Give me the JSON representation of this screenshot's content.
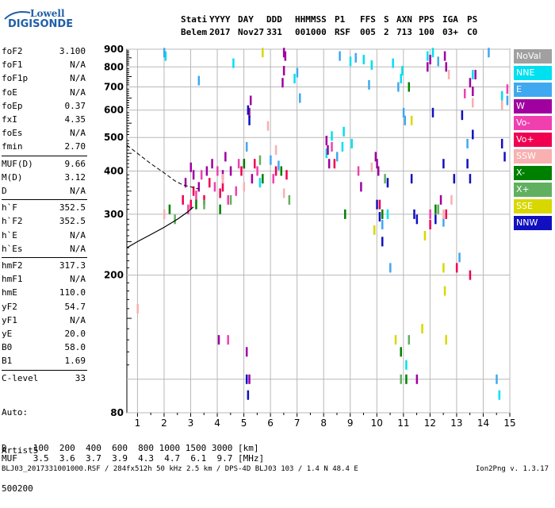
{
  "logo": {
    "line1": "Lowell",
    "line2": "DIGISONDE"
  },
  "header": {
    "row1": [
      "Stati",
      "YYYY",
      "DAY",
      "DDD",
      "HHMMSS",
      "P1",
      "FFS",
      "S",
      "AXN",
      "PPS",
      "IGA",
      "PS"
    ],
    "row2": [
      "Belem",
      "2017",
      "Nov27",
      "331",
      "001000",
      "RSF",
      "005",
      "2",
      "713",
      "100",
      "03+",
      "C0"
    ]
  },
  "params_group1": [
    {
      "k": "foF2",
      "v": "3.100"
    },
    {
      "k": "foF1",
      "v": "N/A"
    },
    {
      "k": "foF1p",
      "v": "N/A"
    },
    {
      "k": "foE",
      "v": "N/A"
    },
    {
      "k": "foEp",
      "v": "0.37"
    },
    {
      "k": "fxI",
      "v": "4.35"
    },
    {
      "k": "foEs",
      "v": "N/A"
    },
    {
      "k": "fmin",
      "v": "2.70"
    }
  ],
  "params_group2": [
    {
      "k": "MUF(D)",
      "v": "9.66"
    },
    {
      "k": "M(D)",
      "v": "3.12"
    },
    {
      "k": "D",
      "v": "N/A"
    }
  ],
  "params_group3": [
    {
      "k": "h`F",
      "v": "352.5"
    },
    {
      "k": "h`F2",
      "v": "352.5"
    },
    {
      "k": "h`E",
      "v": "N/A"
    },
    {
      "k": "h`Es",
      "v": "N/A"
    }
  ],
  "params_group4": [
    {
      "k": "hmF2",
      "v": "317.3"
    },
    {
      "k": "hmF1",
      "v": "N/A"
    },
    {
      "k": "hmE",
      "v": "110.0"
    },
    {
      "k": "yF2",
      "v": "54.7"
    },
    {
      "k": "yF1",
      "v": "N/A"
    },
    {
      "k": "yE",
      "v": "20.0"
    },
    {
      "k": "B0",
      "v": "58.0"
    },
    {
      "k": "B1",
      "v": "1.69"
    }
  ],
  "params_group5": [
    {
      "k": "C-level",
      "v": "33"
    }
  ],
  "auto": {
    "line1": "Auto:",
    "line2": "Artist5",
    "line3": "500200"
  },
  "legend": [
    {
      "label": "NoVal",
      "color": "#a0a0a0"
    },
    {
      "label": "NNE",
      "color": "#00e0f0"
    },
    {
      "label": "E",
      "color": "#40a8f0"
    },
    {
      "label": "W",
      "color": "#a000a0"
    },
    {
      "label": "Vo-",
      "color": "#f040b0"
    },
    {
      "label": "Vo+",
      "color": "#f00050"
    },
    {
      "label": "SSW",
      "color": "#f8b0b0"
    },
    {
      "label": "X-",
      "color": "#008000"
    },
    {
      "label": "X+",
      "color": "#60b060"
    },
    {
      "label": "SSE",
      "color": "#d8d800"
    },
    {
      "label": "NNW",
      "color": "#1010c0"
    }
  ],
  "muf_table": {
    "d_row": "D     100  200  400  600  800 1000 1500 3000 [km]",
    "muf_row": "MUF   3.5  3.6  3.7  3.9  4.3  4.7  6.1  9.7 [MHz]"
  },
  "footer": {
    "left": "BLJ03_2017331001000.RSF / 284fx512h 50 kHz 2.5 km / DPS-4D BLJ03 103 / 1.4 N 48.4 E",
    "right": "Ion2Png v. 1.3.17"
  },
  "chart_data": {
    "type": "scatter",
    "title": "",
    "xlabel": "",
    "ylabel": "",
    "xlim": [
      0.6,
      15
    ],
    "ylim": [
      80,
      900
    ],
    "yscale": "log",
    "xticks": [
      1,
      2,
      3,
      4,
      5,
      6,
      7,
      8,
      9,
      10,
      11,
      12,
      13,
      14,
      15
    ],
    "yticks": [
      80,
      200,
      300,
      400,
      500,
      600,
      700,
      800,
      900
    ],
    "grid": true,
    "profile_dashed": [
      [
        0.6,
        475
      ],
      [
        1.0,
        450
      ],
      [
        1.5,
        420
      ],
      [
        2.0,
        395
      ],
      [
        2.4,
        375
      ],
      [
        2.7,
        365
      ],
      [
        3.0,
        360
      ],
      [
        3.3,
        355
      ]
    ],
    "profile_solid": [
      [
        0.6,
        240
      ],
      [
        1.0,
        250
      ],
      [
        1.5,
        262
      ],
      [
        2.0,
        275
      ],
      [
        2.5,
        290
      ],
      [
        2.9,
        305
      ],
      [
        3.1,
        315
      ]
    ],
    "series": [
      {
        "legend": "NNE",
        "points": [
          [
            2.05,
            860
          ],
          [
            4.6,
            820
          ],
          [
            8.1,
            450
          ],
          [
            8.3,
            505
          ],
          [
            8.7,
            470
          ],
          [
            8.75,
            520
          ],
          [
            9.0,
            830
          ],
          [
            9.05,
            480
          ],
          [
            9.5,
            840
          ],
          [
            9.8,
            810
          ],
          [
            10.4,
            300
          ],
          [
            10.6,
            820
          ],
          [
            10.9,
            740
          ],
          [
            10.95,
            780
          ],
          [
            11.1,
            110
          ],
          [
            11.9,
            860
          ],
          [
            12.1,
            880
          ],
          [
            13.6,
            760
          ],
          [
            14.6,
            90
          ],
          [
            14.7,
            660
          ],
          [
            6.9,
            740
          ],
          [
            5.6,
            370
          ]
        ]
      },
      {
        "legend": "E",
        "points": [
          [
            2.0,
            880
          ],
          [
            3.3,
            730
          ],
          [
            5.1,
            470
          ],
          [
            6.0,
            430
          ],
          [
            6.3,
            415
          ],
          [
            7.0,
            770
          ],
          [
            7.1,
            650
          ],
          [
            8.5,
            440
          ],
          [
            8.6,
            860
          ],
          [
            9.2,
            850
          ],
          [
            9.7,
            710
          ],
          [
            10.2,
            280
          ],
          [
            10.5,
            210
          ],
          [
            10.8,
            700
          ],
          [
            11.0,
            590
          ],
          [
            11.05,
            560
          ],
          [
            12.3,
            830
          ],
          [
            12.5,
            285
          ],
          [
            13.1,
            225
          ],
          [
            13.4,
            480
          ],
          [
            14.2,
            880
          ],
          [
            14.9,
            640
          ],
          [
            14.5,
            100
          ]
        ]
      },
      {
        "legend": "W",
        "points": [
          [
            2.8,
            370
          ],
          [
            3.0,
            410
          ],
          [
            3.1,
            390
          ],
          [
            3.3,
            360
          ],
          [
            3.6,
            400
          ],
          [
            3.8,
            420
          ],
          [
            4.2,
            390
          ],
          [
            4.3,
            440
          ],
          [
            4.5,
            400
          ],
          [
            5.0,
            420
          ],
          [
            5.3,
            380
          ],
          [
            5.2,
            590
          ],
          [
            5.25,
            640
          ],
          [
            6.45,
            720
          ],
          [
            6.5,
            780
          ],
          [
            6.55,
            860
          ],
          [
            6.5,
            880
          ],
          [
            8.1,
            490
          ],
          [
            8.15,
            460
          ],
          [
            8.2,
            420
          ],
          [
            9.4,
            360
          ],
          [
            9.95,
            440
          ],
          [
            10.0,
            420
          ],
          [
            10.05,
            400
          ],
          [
            11.9,
            800
          ],
          [
            12.0,
            840
          ],
          [
            12.55,
            860
          ],
          [
            12.6,
            800
          ],
          [
            12.4,
            330
          ],
          [
            13.5,
            720
          ],
          [
            13.6,
            680
          ],
          [
            13.7,
            760
          ],
          [
            5.1,
            120
          ],
          [
            5.2,
            100
          ],
          [
            4.05,
            130
          ],
          [
            11.5,
            100
          ]
        ]
      },
      {
        "legend": "Vo-",
        "points": [
          [
            2.9,
            310
          ],
          [
            3.2,
            340
          ],
          [
            3.4,
            390
          ],
          [
            3.9,
            360
          ],
          [
            4.0,
            400
          ],
          [
            4.4,
            330
          ],
          [
            4.7,
            350
          ],
          [
            4.8,
            420
          ],
          [
            5.5,
            400
          ],
          [
            6.1,
            380
          ],
          [
            8.3,
            470
          ],
          [
            9.3,
            400
          ],
          [
            12.0,
            300
          ],
          [
            13.3,
            670
          ],
          [
            4.4,
            130
          ],
          [
            14.9,
            690
          ]
        ]
      },
      {
        "legend": "Vo+",
        "points": [
          [
            2.7,
            330
          ],
          [
            3.0,
            320
          ],
          [
            3.1,
            350
          ],
          [
            3.5,
            330
          ],
          [
            3.7,
            370
          ],
          [
            4.1,
            345
          ],
          [
            4.2,
            360
          ],
          [
            4.9,
            400
          ],
          [
            5.4,
            420
          ],
          [
            6.2,
            400
          ],
          [
            6.6,
            390
          ],
          [
            8.4,
            420
          ],
          [
            10.1,
            320
          ],
          [
            12.0,
            280
          ],
          [
            13.0,
            210
          ],
          [
            13.5,
            200
          ],
          [
            12.6,
            300
          ]
        ]
      },
      {
        "legend": "SSW",
        "points": [
          [
            1.0,
            160
          ],
          [
            2.0,
            300
          ],
          [
            4.2,
            380
          ],
          [
            5.0,
            360
          ],
          [
            5.9,
            540
          ],
          [
            6.2,
            460
          ],
          [
            6.5,
            345
          ],
          [
            9.8,
            410
          ],
          [
            12.5,
            300
          ],
          [
            12.8,
            330
          ],
          [
            13.6,
            630
          ],
          [
            14.7,
            620
          ],
          [
            12.7,
            760
          ]
        ]
      },
      {
        "legend": "X-",
        "points": [
          [
            2.2,
            310
          ],
          [
            3.2,
            320
          ],
          [
            4.1,
            310
          ],
          [
            5.0,
            420
          ],
          [
            5.7,
            380
          ],
          [
            6.4,
            400
          ],
          [
            8.8,
            300
          ],
          [
            10.2,
            300
          ],
          [
            10.9,
            120
          ],
          [
            11.1,
            100
          ],
          [
            12.2,
            310
          ],
          [
            11.2,
            700
          ]
        ]
      },
      {
        "legend": "X+",
        "points": [
          [
            2.4,
            290
          ],
          [
            3.5,
            320
          ],
          [
            4.5,
            330
          ],
          [
            5.6,
            430
          ],
          [
            6.7,
            330
          ],
          [
            10.3,
            380
          ],
          [
            10.9,
            100
          ],
          [
            11.2,
            130
          ],
          [
            12.3,
            310
          ]
        ]
      },
      {
        "legend": "SSE",
        "points": [
          [
            5.7,
            880
          ],
          [
            9.9,
            270
          ],
          [
            10.7,
            130
          ],
          [
            11.3,
            560
          ],
          [
            11.7,
            140
          ],
          [
            11.8,
            260
          ],
          [
            12.5,
            210
          ],
          [
            12.55,
            180
          ],
          [
            12.6,
            130
          ]
        ]
      },
      {
        "legend": "NNW",
        "points": [
          [
            5.15,
            600
          ],
          [
            5.2,
            560
          ],
          [
            5.1,
            100
          ],
          [
            5.15,
            90
          ],
          [
            10.0,
            320
          ],
          [
            10.1,
            295
          ],
          [
            10.2,
            250
          ],
          [
            10.4,
            370
          ],
          [
            11.3,
            380
          ],
          [
            11.4,
            300
          ],
          [
            11.5,
            290
          ],
          [
            12.2,
            290
          ],
          [
            12.1,
            590
          ],
          [
            12.5,
            420
          ],
          [
            13.4,
            420
          ],
          [
            13.5,
            380
          ],
          [
            13.6,
            510
          ],
          [
            14.7,
            480
          ],
          [
            14.8,
            440
          ],
          [
            13.2,
            580
          ],
          [
            12.9,
            380
          ]
        ]
      }
    ]
  }
}
